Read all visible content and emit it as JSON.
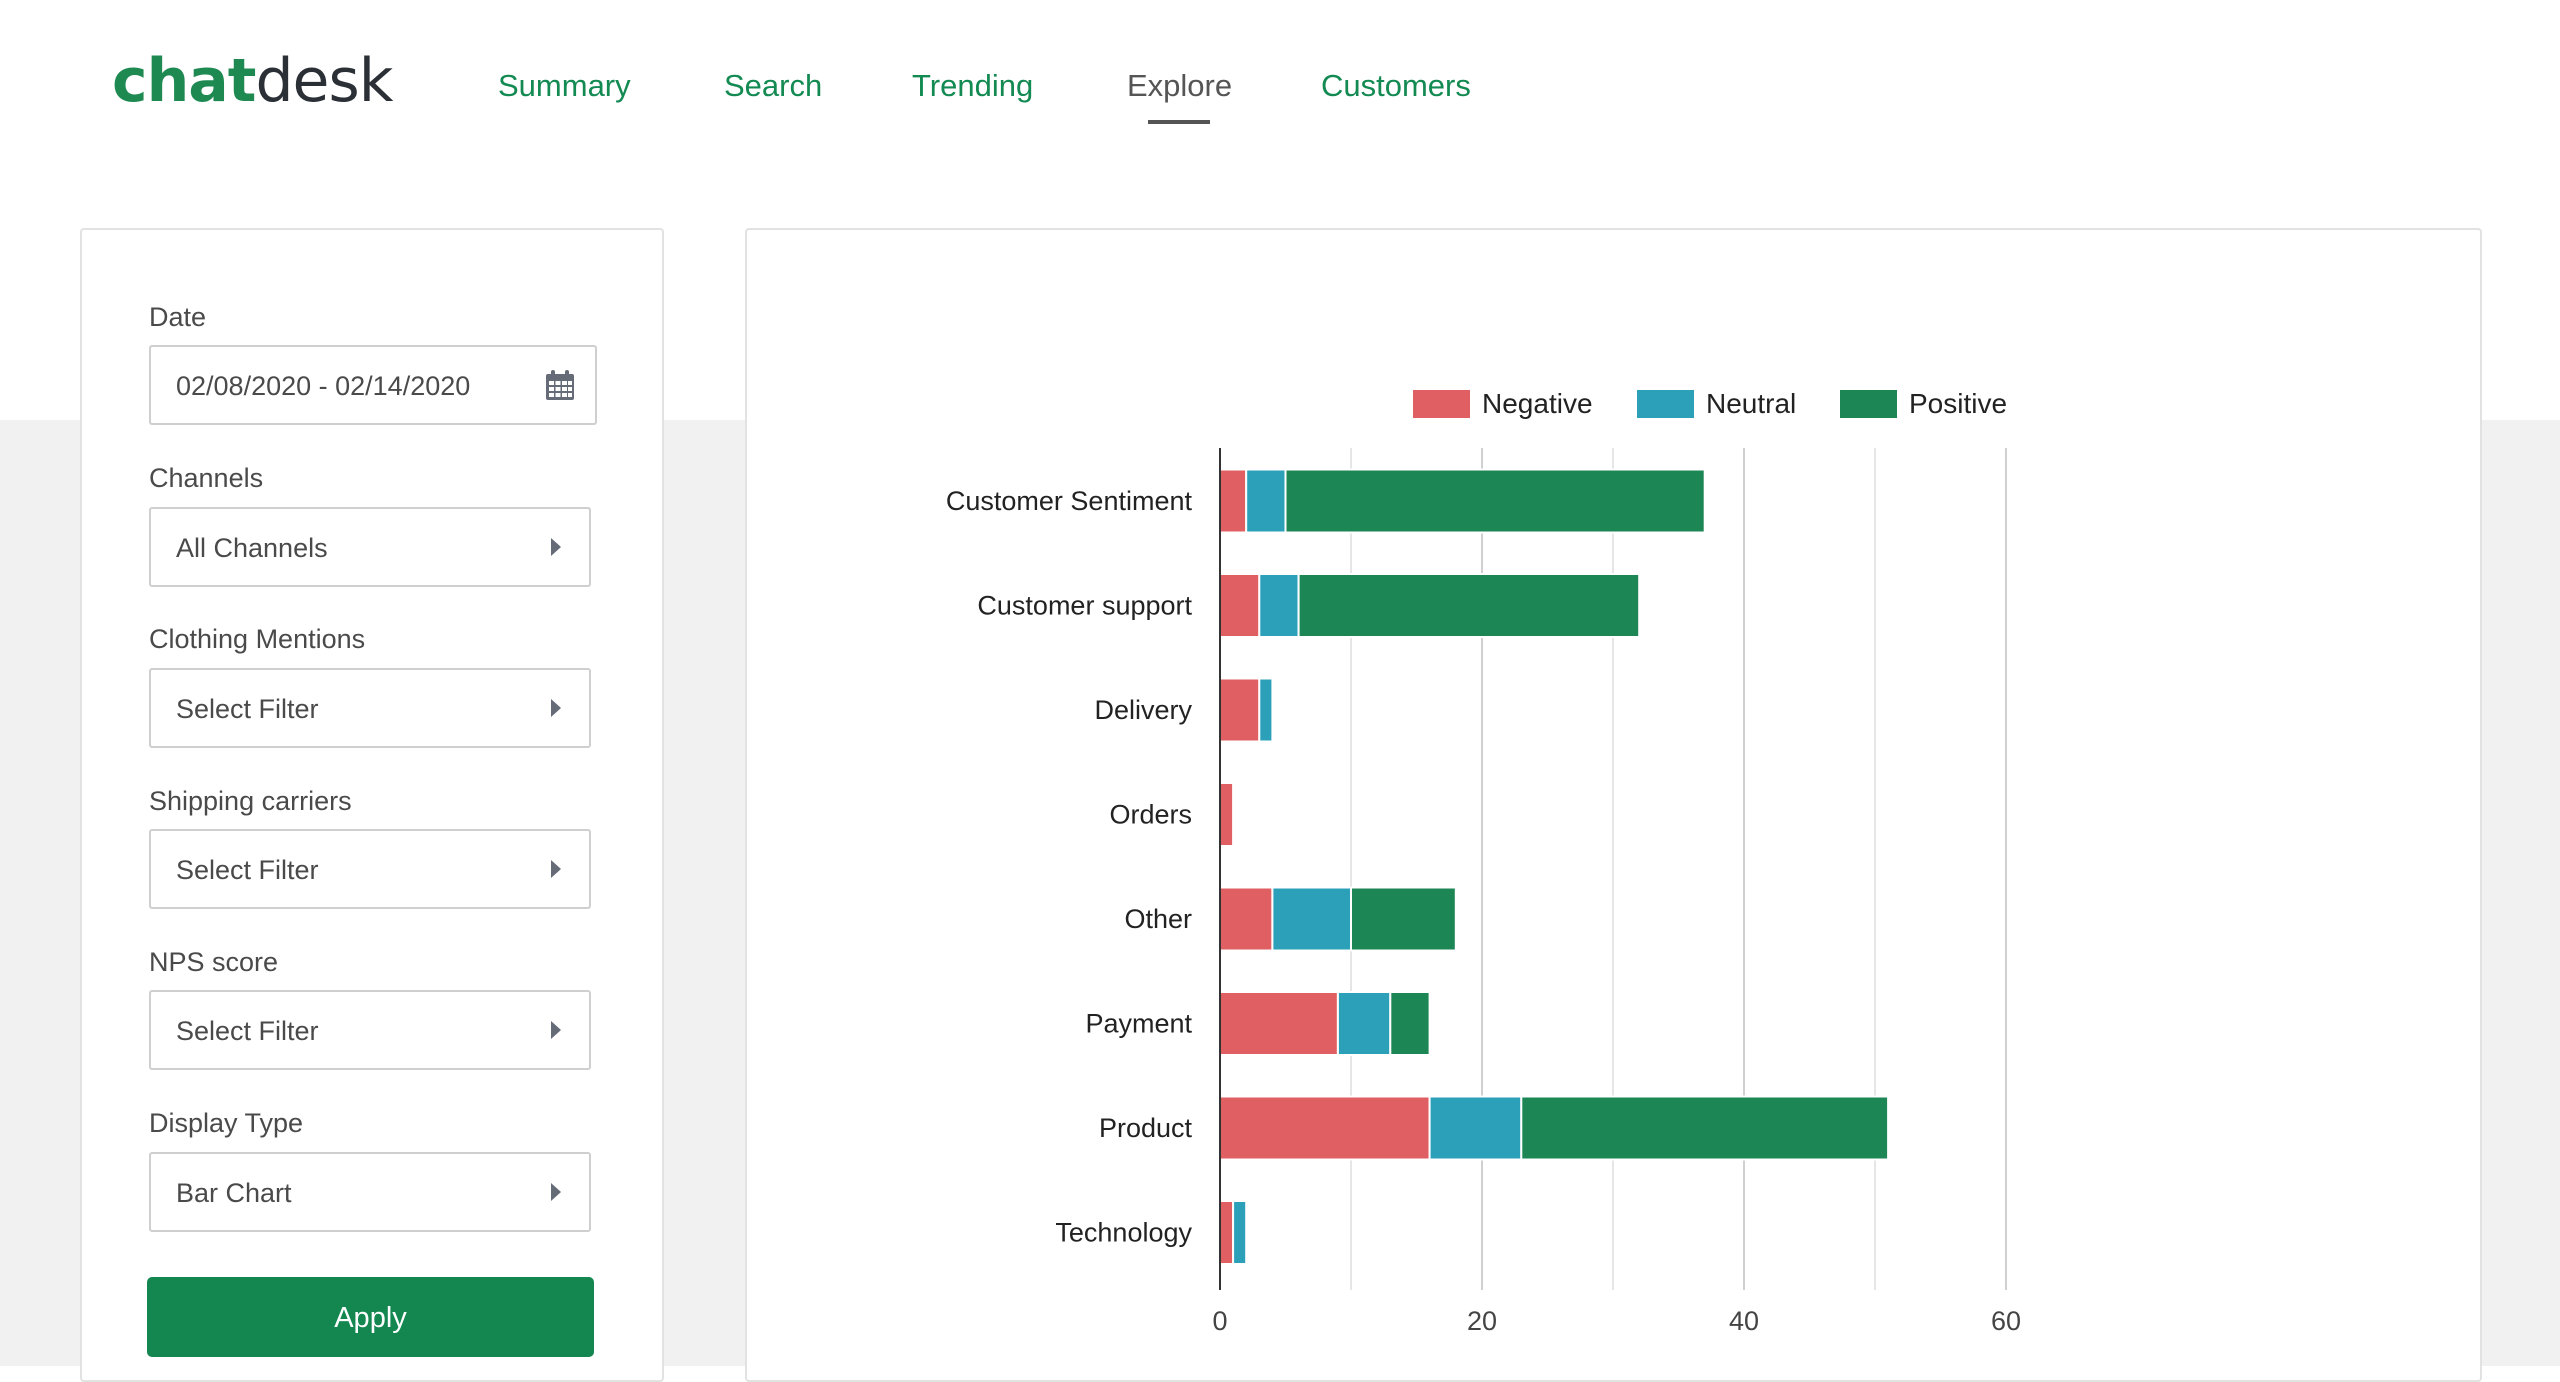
{
  "header": {
    "logo": {
      "part1": "chat",
      "part2": "desk"
    },
    "nav": [
      {
        "label": "Summary",
        "active": false
      },
      {
        "label": "Search",
        "active": false
      },
      {
        "label": "Trending",
        "active": false
      },
      {
        "label": "Explore",
        "active": true
      },
      {
        "label": "Customers",
        "active": false
      }
    ]
  },
  "filters": {
    "date": {
      "label": "Date",
      "value": "02/08/2020 - 02/14/2020",
      "icon": "calendar-icon"
    },
    "channels": {
      "label": "Channels",
      "value": "All Channels"
    },
    "clothing": {
      "label": "Clothing Mentions",
      "value": "Select Filter"
    },
    "shipping": {
      "label": "Shipping carriers",
      "value": "Select Filter"
    },
    "nps": {
      "label": "NPS score",
      "value": "Select Filter"
    },
    "display": {
      "label": "Display Type",
      "value": "Bar Chart"
    },
    "apply_label": "Apply"
  },
  "colors": {
    "brand": "#13874f",
    "negative": "#e05f62",
    "neutral": "#2ca0b9",
    "positive": "#1c8655"
  },
  "chart_data": {
    "type": "bar",
    "orientation": "horizontal",
    "stacked": true,
    "categories": [
      "Customer Sentiment",
      "Customer support",
      "Delivery",
      "Orders",
      "Other",
      "Payment",
      "Product",
      "Technology"
    ],
    "series": [
      {
        "name": "Negative",
        "color": "#e05f62",
        "values": [
          2,
          3,
          3,
          1,
          4,
          9,
          16,
          1
        ]
      },
      {
        "name": "Neutral",
        "color": "#2ca0b9",
        "values": [
          3,
          3,
          1,
          0,
          6,
          4,
          7,
          1
        ]
      },
      {
        "name": "Positive",
        "color": "#1c8655",
        "values": [
          32,
          26,
          0,
          0,
          8,
          3,
          28,
          0
        ]
      }
    ],
    "xlim": [
      0,
      60
    ],
    "xticks": [
      "0",
      "20",
      "40",
      "60"
    ],
    "grid": true,
    "legend": "top"
  }
}
